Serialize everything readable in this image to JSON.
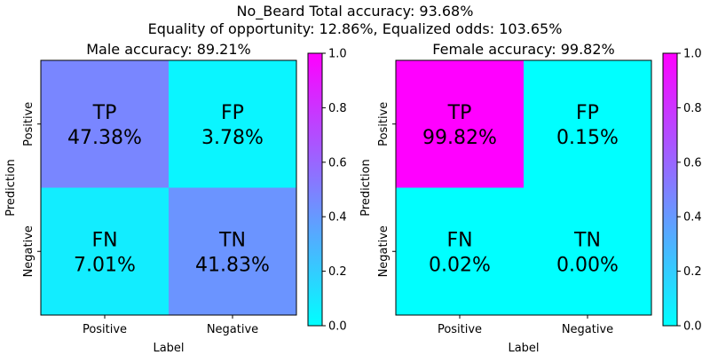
{
  "figure": {
    "suptitle_line1": "No_Beard    Total accuracy: 93.68%",
    "suptitle_line2": "Equality of opportunity: 12.86%, Equalized odds: 103.65%"
  },
  "chart_data": [
    {
      "type": "heatmap",
      "title": "Male accuracy: 89.21%",
      "xlabel": "Label",
      "ylabel": "Prediction",
      "x_categories": [
        "Positive",
        "Negative"
      ],
      "y_categories": [
        "Positive",
        "Negative"
      ],
      "cells": [
        {
          "row": 0,
          "col": 0,
          "name": "TP",
          "text": "47.38%",
          "value": 0.4738
        },
        {
          "row": 0,
          "col": 1,
          "name": "FP",
          "text": "3.78%",
          "value": 0.0378
        },
        {
          "row": 1,
          "col": 0,
          "name": "FN",
          "text": "7.01%",
          "value": 0.0701
        },
        {
          "row": 1,
          "col": 1,
          "name": "TN",
          "text": "41.83%",
          "value": 0.4183
        }
      ],
      "colormap": "cool",
      "colorbar": {
        "range": [
          0.0,
          1.0
        ],
        "ticks": [
          "0.0",
          "0.2",
          "0.4",
          "0.6",
          "0.8",
          "1.0"
        ]
      }
    },
    {
      "type": "heatmap",
      "title": "Female accuracy: 99.82%",
      "xlabel": "Label",
      "ylabel": "Prediction",
      "x_categories": [
        "Positive",
        "Negative"
      ],
      "y_categories": [
        "Positive",
        "Negative"
      ],
      "cells": [
        {
          "row": 0,
          "col": 0,
          "name": "TP",
          "text": "99.82%",
          "value": 0.9982
        },
        {
          "row": 0,
          "col": 1,
          "name": "FP",
          "text": "0.15%",
          "value": 0.0015
        },
        {
          "row": 1,
          "col": 0,
          "name": "FN",
          "text": "0.02%",
          "value": 0.0002
        },
        {
          "row": 1,
          "col": 1,
          "name": "TN",
          "text": "0.00%",
          "value": 0.0
        }
      ],
      "colormap": "cool",
      "colorbar": {
        "range": [
          0.0,
          1.0
        ],
        "ticks": [
          "0.0",
          "0.2",
          "0.4",
          "0.6",
          "0.8",
          "1.0"
        ]
      }
    }
  ]
}
